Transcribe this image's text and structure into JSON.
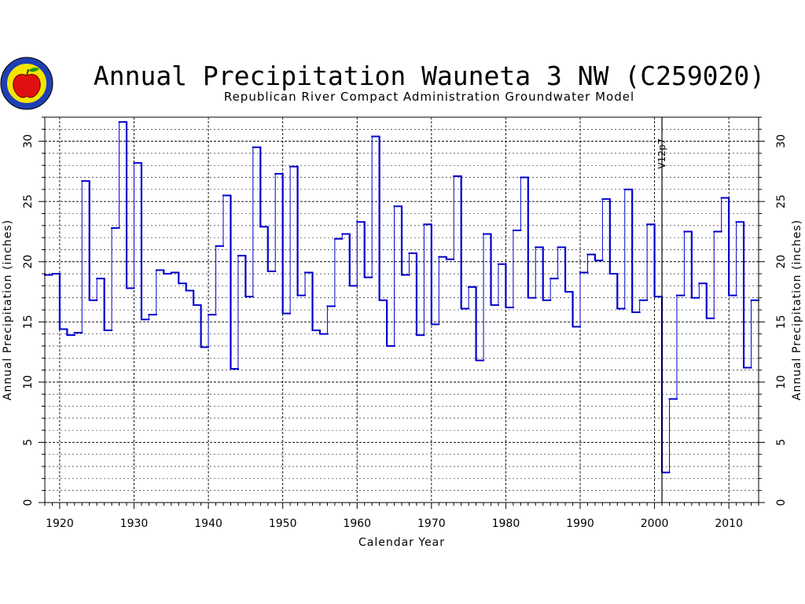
{
  "chart_data": {
    "type": "line",
    "step": true,
    "title": "Annual Precipitation Wauneta 3 NW (C259020)",
    "subtitle": "Republican River Compact Administration Groundwater Model",
    "xlabel": "Calendar Year",
    "ylabel": "Annual Precipitation (inches)",
    "y2label": "Annual Precipitation (inches)",
    "xlim": [
      1918,
      2014
    ],
    "ylim": [
      0,
      32
    ],
    "xticks": [
      1920,
      1930,
      1940,
      1950,
      1960,
      1970,
      1980,
      1990,
      2000,
      2010
    ],
    "yticks": [
      0,
      5,
      10,
      15,
      20,
      25,
      30
    ],
    "grid": true,
    "line_color": "#0000cc",
    "annotation": {
      "label": "V12p7",
      "x": 2001
    },
    "series": [
      {
        "x": [
          1918,
          1919,
          1920,
          1921,
          1922,
          1923,
          1924,
          1925,
          1926,
          1927,
          1928,
          1929,
          1930,
          1931,
          1932,
          1933,
          1934,
          1935,
          1936,
          1937,
          1938,
          1939,
          1940,
          1941,
          1942,
          1943,
          1944,
          1945,
          1946,
          1947,
          1948,
          1949,
          1950,
          1951,
          1952,
          1953,
          1954,
          1955,
          1956,
          1957,
          1958,
          1959,
          1960,
          1961,
          1962,
          1963,
          1964,
          1965,
          1966,
          1967,
          1968,
          1969,
          1970,
          1971,
          1972,
          1973,
          1974,
          1975,
          1976,
          1977,
          1978,
          1979,
          1980,
          1981,
          1982,
          1983,
          1984,
          1985,
          1986,
          1987,
          1988,
          1989,
          1990,
          1991,
          1992,
          1993,
          1994,
          1995,
          1996,
          1997,
          1998,
          1999,
          2000,
          2001,
          2002,
          2003,
          2004,
          2005,
          2006,
          2007,
          2008,
          2009,
          2010,
          2011,
          2012,
          2013
        ],
        "values": [
          18.9,
          19.0,
          14.4,
          13.9,
          14.1,
          26.7,
          16.8,
          18.6,
          14.3,
          22.8,
          31.6,
          17.8,
          28.2,
          15.2,
          15.6,
          19.3,
          19.0,
          19.1,
          18.2,
          17.6,
          16.4,
          12.9,
          15.6,
          21.3,
          25.5,
          11.1,
          20.5,
          17.1,
          29.5,
          22.9,
          19.2,
          27.3,
          15.7,
          27.9,
          17.2,
          19.1,
          14.3,
          14.0,
          16.3,
          21.9,
          22.3,
          18.0,
          23.3,
          18.7,
          30.4,
          16.8,
          13.0,
          24.6,
          18.9,
          20.7,
          13.9,
          23.1,
          14.8,
          20.4,
          20.2,
          27.1,
          16.1,
          17.9,
          11.8,
          22.3,
          16.4,
          19.8,
          16.2,
          22.6,
          27.0,
          17.0,
          21.2,
          16.8,
          18.6,
          21.2,
          17.5,
          14.6,
          19.1,
          20.6,
          20.1,
          25.2,
          19.0,
          16.1,
          26.0,
          15.8,
          16.8,
          23.1,
          17.1,
          2.5,
          8.6,
          17.2,
          22.5,
          17.0,
          18.2,
          15.3,
          22.5,
          25.3,
          17.2,
          23.3,
          11.2,
          16.8
        ]
      }
    ]
  },
  "logo": {
    "name": "rrca-apple-seal"
  }
}
